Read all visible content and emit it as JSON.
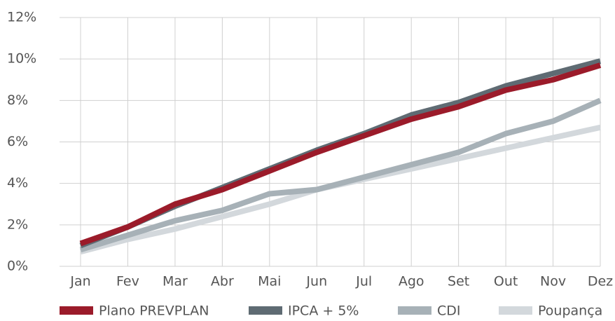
{
  "chart_data": {
    "type": "line",
    "categories": [
      "Jan",
      "Fev",
      "Mar",
      "Abr",
      "Mai",
      "Jun",
      "Jul",
      "Ago",
      "Set",
      "Out",
      "Nov",
      "Dez"
    ],
    "series": [
      {
        "name": "Plano PREVPLAN",
        "color": "#9b1b2a",
        "values": [
          1.1,
          1.9,
          3.0,
          3.7,
          4.6,
          5.5,
          6.3,
          7.1,
          7.7,
          8.5,
          9.0,
          9.7
        ]
      },
      {
        "name": "IPCA + 5%",
        "color": "#5f6b73",
        "values": [
          1.0,
          1.9,
          2.9,
          3.8,
          4.7,
          5.6,
          6.4,
          7.3,
          7.9,
          8.7,
          9.3,
          9.9
        ]
      },
      {
        "name": "CDI",
        "color": "#a7b1b7",
        "values": [
          0.8,
          1.5,
          2.2,
          2.7,
          3.5,
          3.7,
          4.3,
          4.9,
          5.5,
          6.4,
          7.0,
          8.0
        ]
      },
      {
        "name": "Poupança",
        "color": "#d3d8dc",
        "values": [
          0.7,
          1.3,
          1.8,
          2.4,
          3.0,
          3.7,
          4.2,
          4.7,
          5.2,
          5.7,
          6.2,
          6.7
        ]
      }
    ],
    "ylim": [
      0,
      12
    ],
    "yticks": [
      {
        "value": 0,
        "label": "0%"
      },
      {
        "value": 2,
        "label": "2%"
      },
      {
        "value": 4,
        "label": "4%"
      },
      {
        "value": 6,
        "label": "6%"
      },
      {
        "value": 8,
        "label": "8%"
      },
      {
        "value": 10,
        "label": "10%"
      },
      {
        "value": 12,
        "label": "12%"
      }
    ],
    "grid": true,
    "legend": "bottom"
  }
}
